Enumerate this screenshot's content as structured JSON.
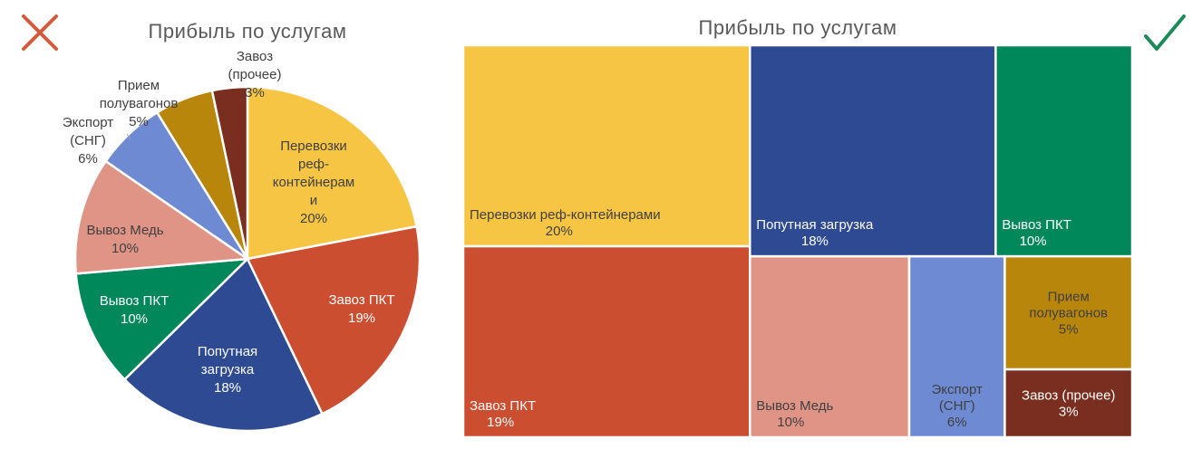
{
  "chart_data": [
    {
      "type": "pie",
      "title": "Прибыль по услугам",
      "verdict_icon": "cross-icon",
      "series": [
        {
          "label_lines": [
            "Перевозки",
            "реф-",
            "контейнерам",
            "и"
          ],
          "pct_label": "20%",
          "value": 20,
          "color": "#F6C543"
        },
        {
          "label_lines": [
            "Завоз ПКТ"
          ],
          "pct_label": "19%",
          "value": 19,
          "color": "#CB4E31"
        },
        {
          "label_lines": [
            "Попутная",
            "загрузка"
          ],
          "pct_label": "18%",
          "value": 18,
          "color": "#2D4A93"
        },
        {
          "label_lines": [
            "Вывоз ПКТ"
          ],
          "pct_label": "10%",
          "value": 10,
          "color": "#00875A"
        },
        {
          "label_lines": [
            "Вывоз Медь"
          ],
          "pct_label": "10%",
          "value": 10,
          "color": "#E09486"
        },
        {
          "label_lines": [
            "Экспорт",
            "(СНГ)"
          ],
          "pct_label": "6%",
          "value": 6,
          "color": "#6D8AD3"
        },
        {
          "label_lines": [
            "Прием",
            "полувагонов"
          ],
          "pct_label": "5%",
          "value": 5,
          "color": "#B8860B"
        },
        {
          "label_lines": [
            "Завоз",
            "(прочее)"
          ],
          "pct_label": "3%",
          "value": 3,
          "color": "#7A2E1F"
        }
      ]
    },
    {
      "type": "treemap",
      "title": "Прибыль по услугам",
      "verdict_icon": "check-icon",
      "series": [
        {
          "label_lines": [
            "Перевозки реф-контейнерами"
          ],
          "pct_label": "20%",
          "value": 20,
          "color": "#F6C543"
        },
        {
          "label_lines": [
            "Завоз ПКТ"
          ],
          "pct_label": "19%",
          "value": 19,
          "color": "#CB4E31"
        },
        {
          "label_lines": [
            "Попутная загрузка"
          ],
          "pct_label": "18%",
          "value": 18,
          "color": "#2D4A93"
        },
        {
          "label_lines": [
            "Вывоз ПКТ"
          ],
          "pct_label": "10%",
          "value": 10,
          "color": "#00875A"
        },
        {
          "label_lines": [
            "Вывоз Медь"
          ],
          "pct_label": "10%",
          "value": 10,
          "color": "#E09486"
        },
        {
          "label_lines": [
            "Экспорт",
            "(СНГ)"
          ],
          "pct_label": "6%",
          "value": 6,
          "color": "#6D8AD3"
        },
        {
          "label_lines": [
            "Прием",
            "полувагонов"
          ],
          "pct_label": "5%",
          "value": 5,
          "color": "#B8860B"
        },
        {
          "label_lines": [
            "Завоз (прочее)"
          ],
          "pct_label": "3%",
          "value": 3,
          "color": "#7A2E1F"
        }
      ]
    }
  ],
  "colors": {
    "cross": "#D45A3C",
    "check": "#1E8A5A",
    "dark_text": "#404040",
    "light_text": "#FFFFFF"
  }
}
